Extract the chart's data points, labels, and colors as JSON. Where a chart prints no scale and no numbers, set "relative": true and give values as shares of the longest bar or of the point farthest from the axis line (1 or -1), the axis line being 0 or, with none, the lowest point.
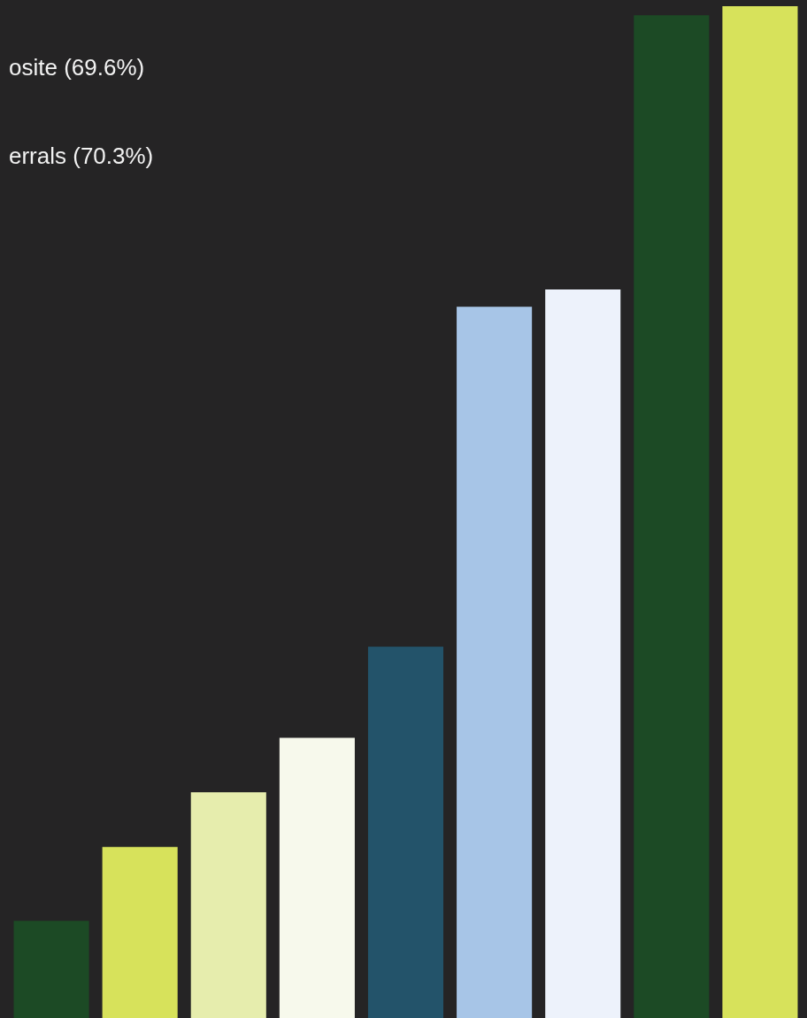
{
  "chart_data": {
    "type": "bar",
    "relative": true,
    "categories": [
      null,
      null,
      null,
      null,
      null,
      null,
      null,
      null,
      null
    ],
    "values": [
      0.096,
      0.169,
      0.223,
      0.277,
      0.367,
      0.703,
      0.72,
      0.991,
      1
    ],
    "colors": [
      "#1c4a25",
      "#d7e25b",
      "#e6edad",
      "#f7f9ec",
      "#23536a",
      "#a7c5e7",
      "#edf2fb",
      "#1c4a25",
      "#d7e25b"
    ],
    "annotations": [
      "osite (69.6%)",
      "errals (70.3%)"
    ]
  }
}
